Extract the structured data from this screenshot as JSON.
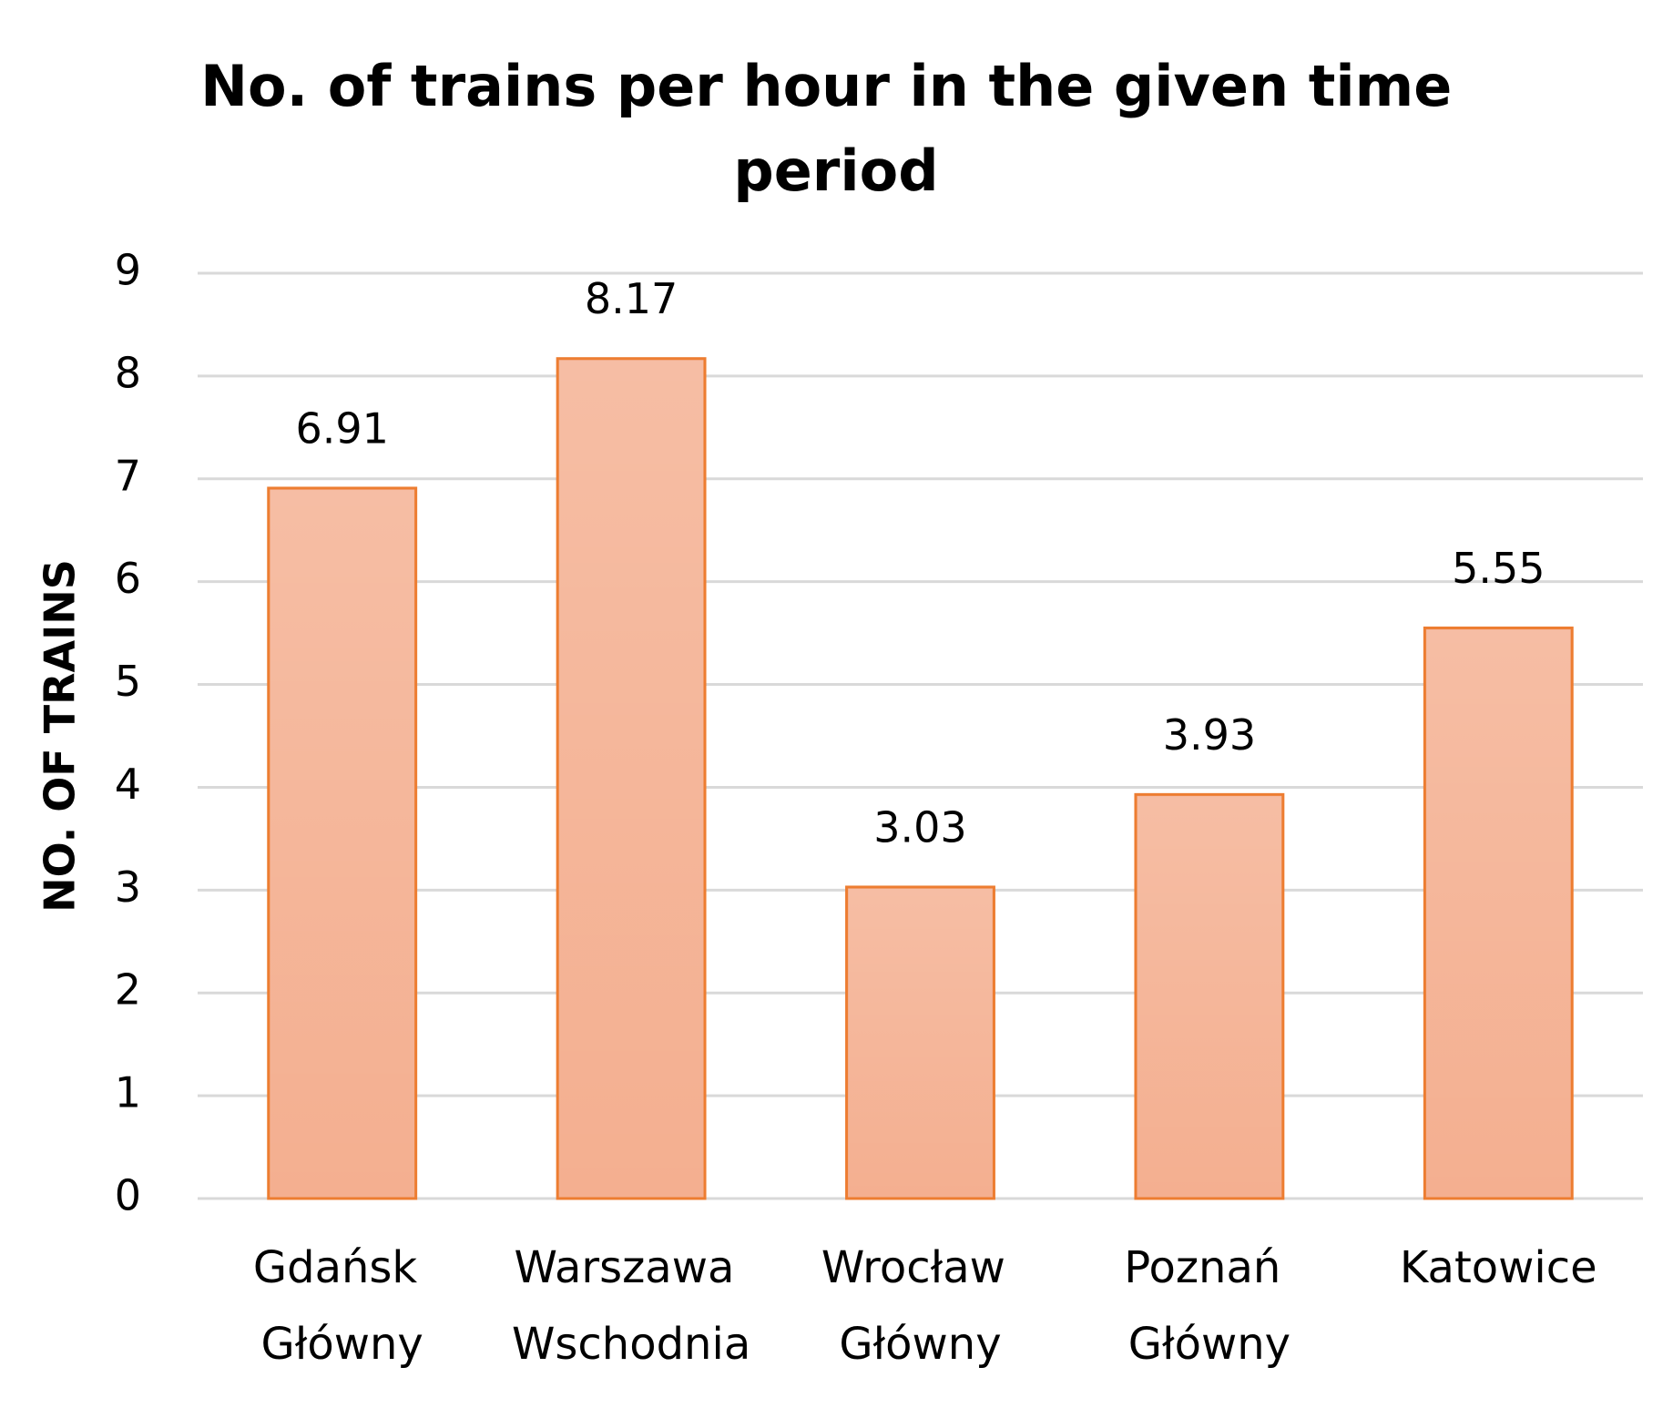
{
  "chart_data": {
    "type": "bar",
    "title": "No. of trains per hour in the given time period",
    "y_label": "NO. OF TRAINS",
    "categories": [
      "Gdańsk Główny",
      "Warszawa Wschodnia",
      "Wrocław Główny",
      "Poznań Główny",
      "Katowice"
    ],
    "values": [
      6.91,
      8.17,
      3.03,
      3.93,
      5.55
    ],
    "color": "#f4af90",
    "edge_color": "#ed7d31",
    "ylim": [
      0,
      9
    ],
    "yticks": [
      0,
      1,
      2,
      3,
      4,
      5,
      6,
      7,
      8,
      9
    ],
    "grid": true
  }
}
